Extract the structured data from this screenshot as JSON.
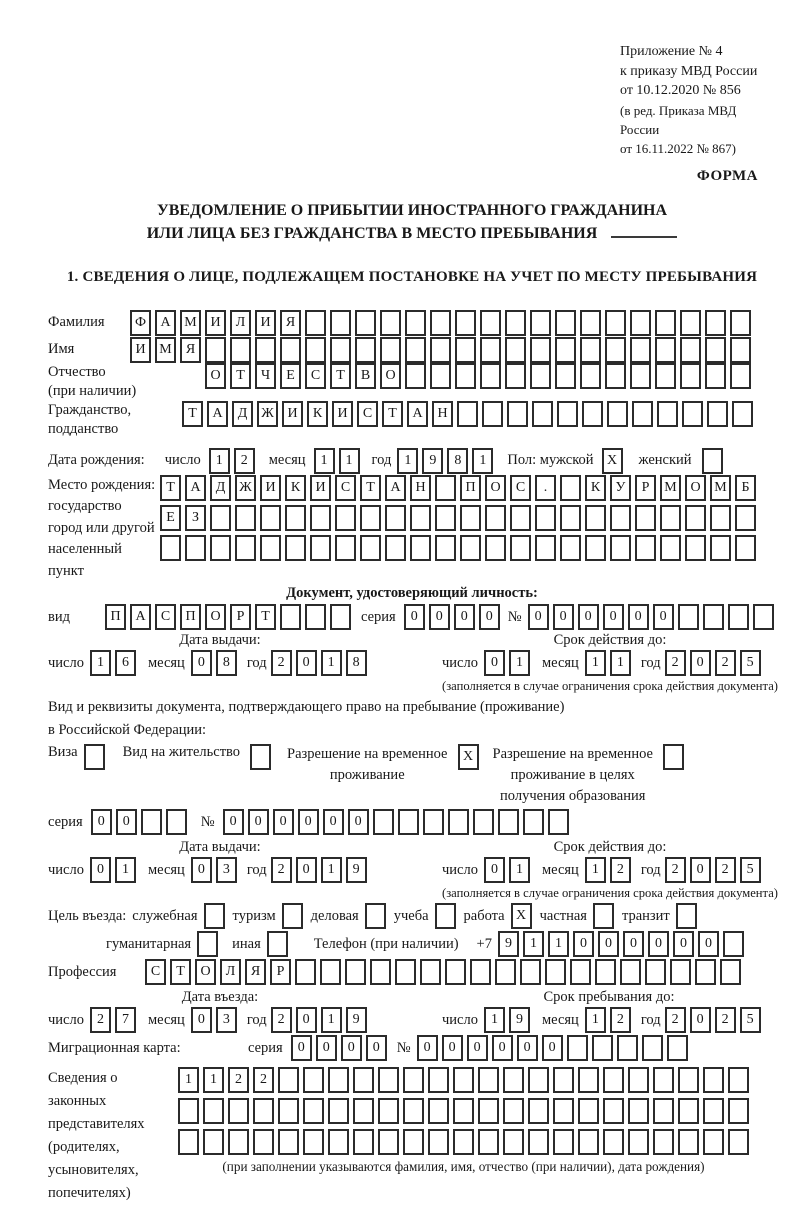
{
  "header": {
    "l1": "Приложение № 4",
    "l2": "к приказу МВД России",
    "l3": "от 10.12.2020 № 856",
    "l4": "(в ред. Приказа МВД России",
    "l5": "от 16.11.2022 № 867)",
    "forma": "ФОРМА"
  },
  "title": {
    "l1": "УВЕДОМЛЕНИЕ О ПРИБЫТИИ ИНОСТРАННОГО ГРАЖДАНИНА",
    "l2": "ИЛИ ЛИЦА БЕЗ ГРАЖДАНСТВА В МЕСТО ПРЕБЫВАНИЯ"
  },
  "section1_heading": "1. СВЕДЕНИЯ О ЛИЦЕ, ПОДЛЕЖАЩЕМ ПОСТАНОВКЕ НА УЧЕТ ПО МЕСТУ ПРЕБЫВАНИЯ",
  "labels": {
    "day": "число",
    "month": "месяц",
    "year": "год",
    "series": "серия",
    "number": "№",
    "issue_date": "Дата выдачи:",
    "validity": "Срок действия до:",
    "validity_note": "(заполняется в случае ограничения срока действия документа)"
  },
  "person": {
    "surname_label": "Фамилия",
    "surname": {
      "text": "ФАМИЛИЯ",
      "len": 25
    },
    "name_label": "Имя",
    "name": {
      "text": "ИМЯ",
      "len": 25
    },
    "patronymic_label1": "Отчество",
    "patronymic_label2": "(при наличии)",
    "patronymic": {
      "text": "ОТЧЕСТВО",
      "len": 22
    },
    "citizenship_label1": "Гражданство,",
    "citizenship_label2": "подданство",
    "citizenship": {
      "text": "ТАДЖИКИСТАН",
      "len": 23
    },
    "birthdate_label": "Дата рождения:",
    "birth_day": "12",
    "birth_month": "11",
    "birth_year": "1981",
    "sex_male_label": "Пол: мужской",
    "sex_male": "X",
    "sex_female_label": "женский",
    "sex_female": " ",
    "birthplace_label1": "Место рождения:",
    "birthplace_label2": "государство",
    "birthplace_label3": "город или другой",
    "birthplace_label4": "населенный пункт",
    "birthplace_row1": {
      "text": "ТАДЖИКИСТАН ПОС. КУРМОМБ",
      "len": 24
    },
    "birthplace_row2": {
      "text": "ЕЗ",
      "len": 24
    },
    "birthplace_row3": {
      "text": "",
      "len": 24
    }
  },
  "iddoc": {
    "heading": "Документ, удостоверяющий личность:",
    "type_label": "вид",
    "type": {
      "text": "ПАСПОРТ",
      "len": 10
    },
    "series": {
      "text": "0000",
      "len": 4
    },
    "number": {
      "text": "000000",
      "len": 10
    },
    "issue_day": "16",
    "issue_month": "08",
    "issue_year": "2018",
    "expiry_day": "01",
    "expiry_month": "11",
    "expiry_year": "2025"
  },
  "permit": {
    "intro1": "Вид и реквизиты документа, подтверждающего право на пребывание (проживание)",
    "intro2": "в Российской Федерации:",
    "visa_label": "Виза",
    "visa_mark": " ",
    "residence_label": "Вид на жительство",
    "residence_mark": " ",
    "rvp_label1": "Разрешение на временное",
    "rvp_label2": "проживание",
    "rvp_mark": "X",
    "rvpo_label1": "Разрешение на временное",
    "rvpo_label2": "проживание в целях",
    "rvpo_label3": "получения образования",
    "rvpo_mark": " ",
    "series": {
      "text": "00",
      "len": 4
    },
    "number": {
      "text": "000000",
      "len": 14
    },
    "issue_day": "01",
    "issue_month": "03",
    "issue_year": "2019",
    "expiry_day": "01",
    "expiry_month": "12",
    "expiry_year": "2025"
  },
  "visit": {
    "purpose_intro": "Цель въезда:",
    "purposes": [
      {
        "label": "служебная",
        "mark": " "
      },
      {
        "label": "туризм",
        "mark": " "
      },
      {
        "label": "деловая",
        "mark": " "
      },
      {
        "label": "учеба",
        "mark": " "
      },
      {
        "label": "работа",
        "mark": "X"
      },
      {
        "label": "частная",
        "mark": " "
      },
      {
        "label": "транзит",
        "mark": " "
      },
      {
        "label": "гуманитарная",
        "mark": " "
      },
      {
        "label": "иная",
        "mark": " "
      }
    ],
    "phone_label": "Телефон (при наличии)",
    "phone_prefix": "+7",
    "phone": {
      "text": "911000000",
      "len": 10
    },
    "profession_label": "Профессия",
    "profession": {
      "text": "СТОЛЯР",
      "len": 24
    },
    "entry_label": "Дата въезда:",
    "entry_day": "27",
    "entry_month": "03",
    "entry_year": "2019",
    "stay_label": "Срок пребывания до:",
    "stay_day": "19",
    "stay_month": "12",
    "stay_year": "2025"
  },
  "migration": {
    "label": "Миграционная карта:",
    "series": {
      "text": "0000",
      "len": 4
    },
    "number": {
      "text": "000000",
      "len": 11
    }
  },
  "legal": {
    "label1": "Сведения о",
    "label2": "законных",
    "label3": "представителях",
    "label4": "(родителях,",
    "label5": "усыновителях,",
    "label6": "попечителях)",
    "row1": {
      "text": "1122",
      "len": 23
    },
    "row2": {
      "text": "",
      "len": 23
    },
    "row3": {
      "text": "",
      "len": 23
    },
    "note": "(при заполнении указываются фамилия, имя, отчество (при наличии), дата рождения)"
  }
}
